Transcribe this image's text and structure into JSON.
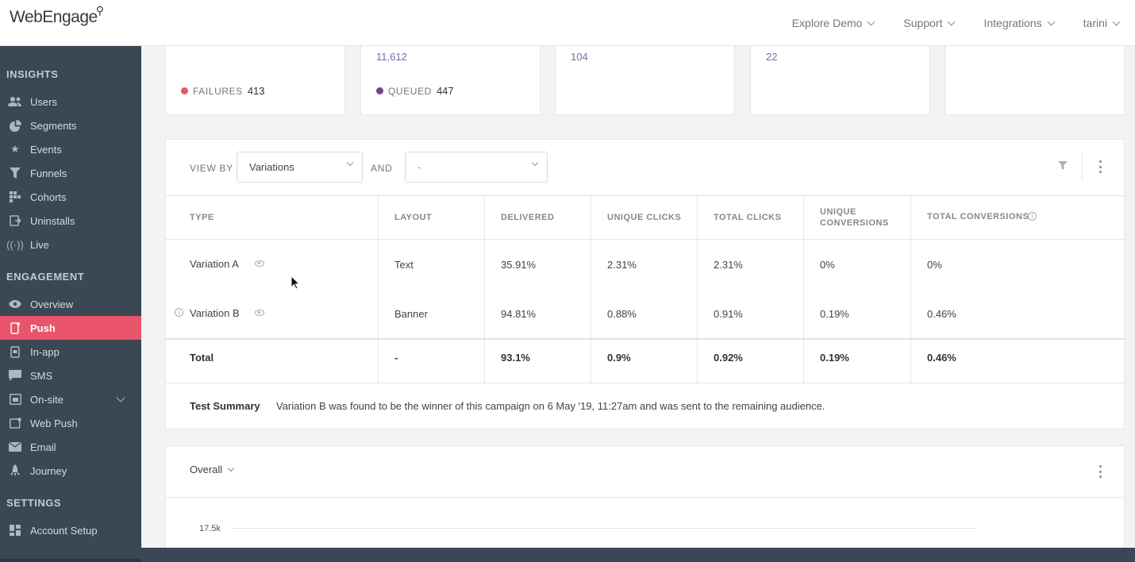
{
  "header": {
    "logo": "WebEngage",
    "nav": [
      "Explore Demo",
      "Support",
      "Integrations",
      "tarini"
    ]
  },
  "sidebar": {
    "sections": {
      "insights": "INSIGHTS",
      "engagement": "ENGAGEMENT",
      "settings": "SETTINGS"
    },
    "insights_items": [
      {
        "label": "Users",
        "icon": "users-icon"
      },
      {
        "label": "Segments",
        "icon": "pie-icon"
      },
      {
        "label": "Events",
        "icon": "star-icon"
      },
      {
        "label": "Funnels",
        "icon": "funnel-icon"
      },
      {
        "label": "Cohorts",
        "icon": "grid-icon"
      },
      {
        "label": "Uninstalls",
        "icon": "uninstall-icon"
      },
      {
        "label": "Live",
        "icon": "broadcast-icon"
      }
    ],
    "engagement_items": [
      {
        "label": "Overview",
        "icon": "eye-icon"
      },
      {
        "label": "Push",
        "icon": "mobile-icon",
        "active": true
      },
      {
        "label": "In-app",
        "icon": "inapp-icon"
      },
      {
        "label": "SMS",
        "icon": "sms-icon"
      },
      {
        "label": "On-site",
        "icon": "onsite-icon"
      },
      {
        "label": "Web Push",
        "icon": "webpush-icon"
      },
      {
        "label": "Email",
        "icon": "email-icon"
      },
      {
        "label": "Journey",
        "icon": "rocket-icon"
      }
    ],
    "settings_items": [
      {
        "label": "Account Setup",
        "icon": "dashboard-icon"
      }
    ],
    "active_color": "#e9546b"
  },
  "stats": [
    {
      "value": "",
      "label": "FAILURES",
      "count": "413",
      "dot_color": "#e4576a"
    },
    {
      "value": "11,612",
      "label": "QUEUED",
      "count": "447",
      "dot_color": "#7b3f8c"
    },
    {
      "value": "104"
    },
    {
      "value": "22"
    },
    {
      "value": ""
    }
  ],
  "table": {
    "view_by_label": "VIEW BY",
    "view_by_value": "Variations",
    "and_label": "AND",
    "and_value": "-",
    "columns": [
      "TYPE",
      "LAYOUT",
      "DELIVERED",
      "UNIQUE CLICKS",
      "TOTAL CLICKS",
      "UNIQUE CONVERSIONS",
      "TOTAL CONVERSIONS"
    ],
    "rows": [
      {
        "type": "Variation A",
        "layout": "Text",
        "delivered": "35.91%",
        "unique_clicks": "2.31%",
        "total_clicks": "2.31%",
        "unique_conversions": "0%",
        "total_conversions": "0%"
      },
      {
        "type": "Variation B",
        "layout": "Banner",
        "delivered": "94.81%",
        "unique_clicks": "0.88%",
        "total_clicks": "0.91%",
        "unique_conversions": "0.19%",
        "total_conversions": "0.46%"
      }
    ],
    "total": {
      "type": "Total",
      "layout": "-",
      "delivered": "93.1%",
      "unique_clicks": "0.9%",
      "total_clicks": "0.92%",
      "unique_conversions": "0.19%",
      "total_conversions": "0.46%"
    },
    "summary_label": "Test Summary",
    "summary_text": "Variation B was found to be the winner of this campaign on 6 May '19, 11:27am and was sent to the remaining audience."
  },
  "chart": {
    "selector": "Overall",
    "ytick": "17.5k"
  }
}
